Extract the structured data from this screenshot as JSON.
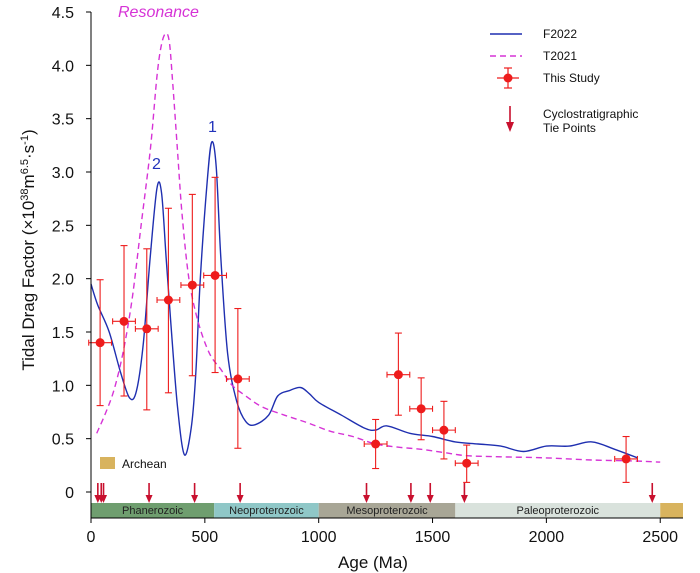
{
  "chart_data": {
    "type": "line",
    "title": "",
    "xlabel": "Age (Ma)",
    "ylabel_parts": {
      "pre": "Tidal Drag Factor (×10",
      "exp1": "38",
      "mid": "m",
      "exp2": "6.5",
      "mid2": "·s",
      "exp3": "-1",
      "post": ")"
    },
    "xlim": [
      0,
      2600
    ],
    "ylim": [
      0,
      4.5
    ],
    "x_ticks": [
      0,
      500,
      1000,
      1500,
      2000,
      2500
    ],
    "x_tick_labels": [
      "0",
      "500",
      "1000",
      "1500",
      "2000",
      "2500"
    ],
    "y_ticks": [
      0,
      0.5,
      1.0,
      1.5,
      2.0,
      2.5,
      3.0,
      3.5,
      4.0,
      4.5
    ],
    "y_tick_labels": [
      "0",
      "0.5",
      "1.0",
      "1.5",
      "2.0",
      "2.5",
      "3.0",
      "3.5",
      "4.0",
      "4.5"
    ],
    "series": [
      {
        "name": "F2022",
        "style": "solid",
        "color": "#1f2fb0",
        "x": [
          0,
          30,
          80,
          130,
          170,
          200,
          230,
          260,
          290,
          310,
          330,
          350,
          380,
          410,
          440,
          460,
          480,
          510,
          530,
          550,
          570,
          600,
          640,
          680,
          720,
          780,
          820,
          870,
          920,
          960,
          1000,
          1100,
          1200,
          1250,
          1300,
          1400,
          1500,
          1600,
          1700,
          1800,
          1900,
          2000,
          2100,
          2200,
          2300,
          2400
        ],
        "y": [
          1.95,
          1.75,
          1.5,
          1.12,
          0.88,
          0.95,
          1.4,
          2.2,
          2.85,
          2.8,
          2.2,
          1.6,
          0.8,
          0.35,
          0.6,
          1.1,
          2.0,
          2.9,
          3.28,
          3.05,
          2.2,
          1.3,
          0.85,
          0.66,
          0.63,
          0.72,
          0.9,
          0.95,
          0.98,
          0.92,
          0.84,
          0.72,
          0.6,
          0.58,
          0.62,
          0.55,
          0.52,
          0.47,
          0.45,
          0.43,
          0.38,
          0.43,
          0.43,
          0.47,
          0.4,
          0.32
        ]
      },
      {
        "name": "T2021",
        "style": "dashed",
        "color": "#d633d6",
        "x": [
          25,
          60,
          100,
          140,
          180,
          220,
          260,
          290,
          310,
          330,
          345,
          360,
          380,
          400,
          430,
          470,
          520,
          570,
          620,
          680,
          750,
          850,
          950,
          1050,
          1150,
          1250,
          1350,
          1450,
          1550,
          1650,
          1800,
          2000,
          2200,
          2400,
          2500
        ],
        "y": [
          0.55,
          0.72,
          0.95,
          1.3,
          1.8,
          2.5,
          3.2,
          3.9,
          4.2,
          4.3,
          4.2,
          3.8,
          3.2,
          2.6,
          2.0,
          1.6,
          1.3,
          1.15,
          1.0,
          0.9,
          0.8,
          0.72,
          0.65,
          0.57,
          0.52,
          0.45,
          0.42,
          0.4,
          0.37,
          0.34,
          0.33,
          0.32,
          0.3,
          0.29,
          0.28
        ]
      },
      {
        "name": "This Study",
        "style": "points",
        "color": "#ee1c1c",
        "points": [
          {
            "x": 40,
            "y": 1.4,
            "xerr": 50,
            "ylo": 0.81,
            "yhi": 1.99
          },
          {
            "x": 145,
            "y": 1.6,
            "xerr": 50,
            "ylo": 0.9,
            "yhi": 2.31
          },
          {
            "x": 245,
            "y": 1.53,
            "xerr": 50,
            "ylo": 0.77,
            "yhi": 2.28
          },
          {
            "x": 340,
            "y": 1.8,
            "xerr": 50,
            "ylo": 0.93,
            "yhi": 2.66
          },
          {
            "x": 445,
            "y": 1.94,
            "xerr": 50,
            "ylo": 1.09,
            "yhi": 2.79
          },
          {
            "x": 545,
            "y": 2.03,
            "xerr": 50,
            "ylo": 1.12,
            "yhi": 2.95
          },
          {
            "x": 645,
            "y": 1.06,
            "xerr": 50,
            "ylo": 0.41,
            "yhi": 1.72
          },
          {
            "x": 1250,
            "y": 0.45,
            "xerr": 50,
            "ylo": 0.22,
            "yhi": 0.68
          },
          {
            "x": 1350,
            "y": 1.1,
            "xerr": 50,
            "ylo": 0.72,
            "yhi": 1.49
          },
          {
            "x": 1450,
            "y": 0.78,
            "xerr": 50,
            "ylo": 0.49,
            "yhi": 1.07
          },
          {
            "x": 1550,
            "y": 0.58,
            "xerr": 50,
            "ylo": 0.31,
            "yhi": 0.85
          },
          {
            "x": 1650,
            "y": 0.27,
            "xerr": 50,
            "ylo": 0.09,
            "yhi": 0.44
          },
          {
            "x": 2350,
            "y": 0.31,
            "xerr": 50,
            "ylo": 0.09,
            "yhi": 0.52
          }
        ]
      }
    ],
    "tie_points": [
      30,
      45,
      55,
      255,
      455,
      655,
      1210,
      1405,
      1490,
      1640,
      2465
    ],
    "eras": [
      {
        "name": "Phanerozoic",
        "start": 0,
        "end": 541,
        "color": "#6f9e6f",
        "labeled": true
      },
      {
        "name": "Neoproterozoic",
        "start": 541,
        "end": 1000,
        "color": "#8fc7c7",
        "labeled": true
      },
      {
        "name": "Mesoproterozoic",
        "start": 1000,
        "end": 1600,
        "color": "#a8a696",
        "labeled": true
      },
      {
        "name": "Paleoproterozoic",
        "start": 1600,
        "end": 2500,
        "color": "#d9e2dc",
        "labeled": true
      },
      {
        "name": "Archean",
        "start": 2500,
        "end": 2600,
        "color": "#d8b35e",
        "labeled": false
      }
    ],
    "annotations": {
      "resonance": "Resonance",
      "peak1": "1",
      "peak2": "2",
      "archean_legend": "Archean"
    },
    "legend": {
      "position": "top-right",
      "f2022": "F2022",
      "t2021": "T2021",
      "this_study": "This Study",
      "tie_line1": "Cyclostratigraphic",
      "tie_line2": "Tie Points"
    },
    "colors": {
      "f2022": "#1f2fb0",
      "t2021": "#d633d6",
      "study": "#ee1c1c",
      "archean": "#d8b35e"
    }
  }
}
